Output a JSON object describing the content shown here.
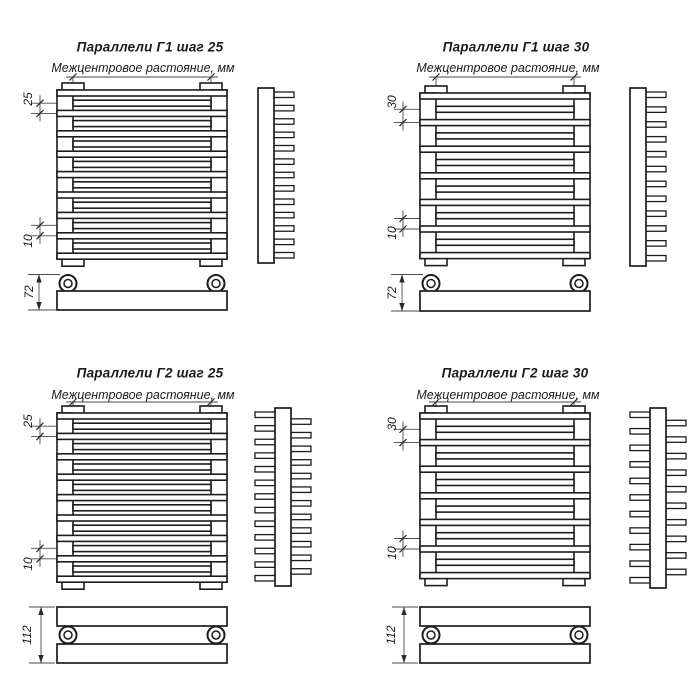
{
  "document": {
    "background": "#ffffff",
    "line_color": "#1c1c1c",
    "dim_line_color": "#4a4a4a"
  },
  "panels": [
    {
      "id": "g1-step-25",
      "title": "Параллели Г1 шаг 25",
      "subtitle": "Межцентровое растояние, мм",
      "type": "G1",
      "front_bars": 17,
      "side_teeth": 13,
      "dims": {
        "step": "25",
        "gap": "10",
        "depth": "72"
      }
    },
    {
      "id": "g1-step-30",
      "title": "Параллели Г1 шаг 30",
      "subtitle": "Межцентровое растояние, мм",
      "type": "G1",
      "front_bars": 13,
      "side_teeth": 12,
      "dims": {
        "step": "30",
        "gap": "10",
        "depth": "72"
      }
    },
    {
      "id": "g2-step-25",
      "title": "Параллели Г2 шаг 25",
      "subtitle": "Межцентровое растояние, мм",
      "type": "G2",
      "front_bars": 17,
      "side_teeth": 13,
      "dims": {
        "step": "25",
        "gap": "10",
        "depth": "112"
      }
    },
    {
      "id": "g2-step-30",
      "title": "Параллели Г2 шаг 30",
      "subtitle": "Межцентровое растояние, мм",
      "type": "G2",
      "front_bars": 13,
      "side_teeth": 11,
      "dims": {
        "step": "30",
        "gap": "10",
        "depth": "112"
      }
    }
  ]
}
